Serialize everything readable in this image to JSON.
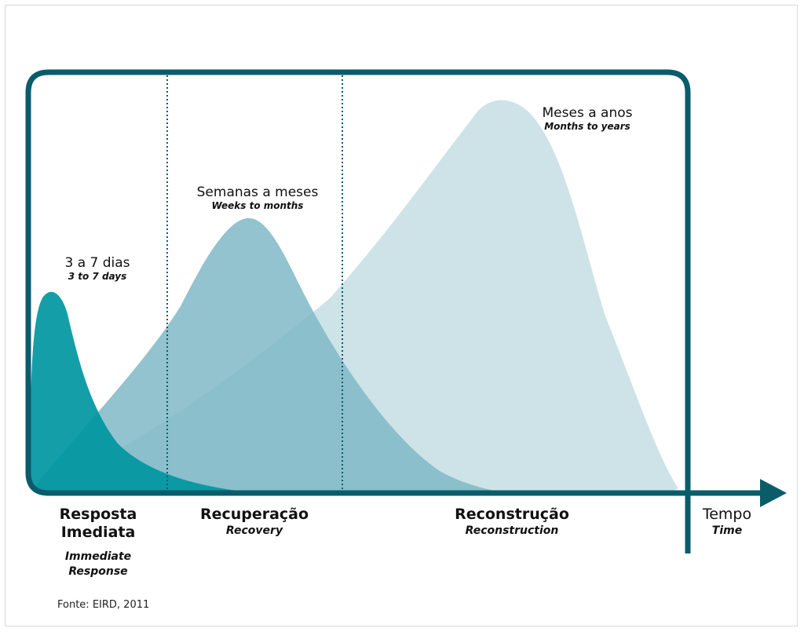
{
  "curves": [
    {
      "label_pt": "3 a 7 dias",
      "label_en": "3 to 7 days",
      "color": "#0096a1"
    },
    {
      "label_pt": "Semanas a meses",
      "label_en": "Weeks to months",
      "color": "#7fb9c6"
    },
    {
      "label_pt": "Meses a anos",
      "label_en": "Months to years",
      "color": "#cde3e8"
    }
  ],
  "phases": [
    {
      "label_pt": "Resposta Imediata",
      "label_en": "Immediate Response"
    },
    {
      "label_pt": "Recuperação",
      "label_en": "Recovery"
    },
    {
      "label_pt": "Reconstrução",
      "label_en": "Reconstruction"
    }
  ],
  "axis": {
    "label_pt": "Tempo",
    "label_en": "Time"
  },
  "source": "Fonte: EIRD, 2011",
  "colors": {
    "frame": "#0b5c6b",
    "divider": "#0b5c6b"
  }
}
